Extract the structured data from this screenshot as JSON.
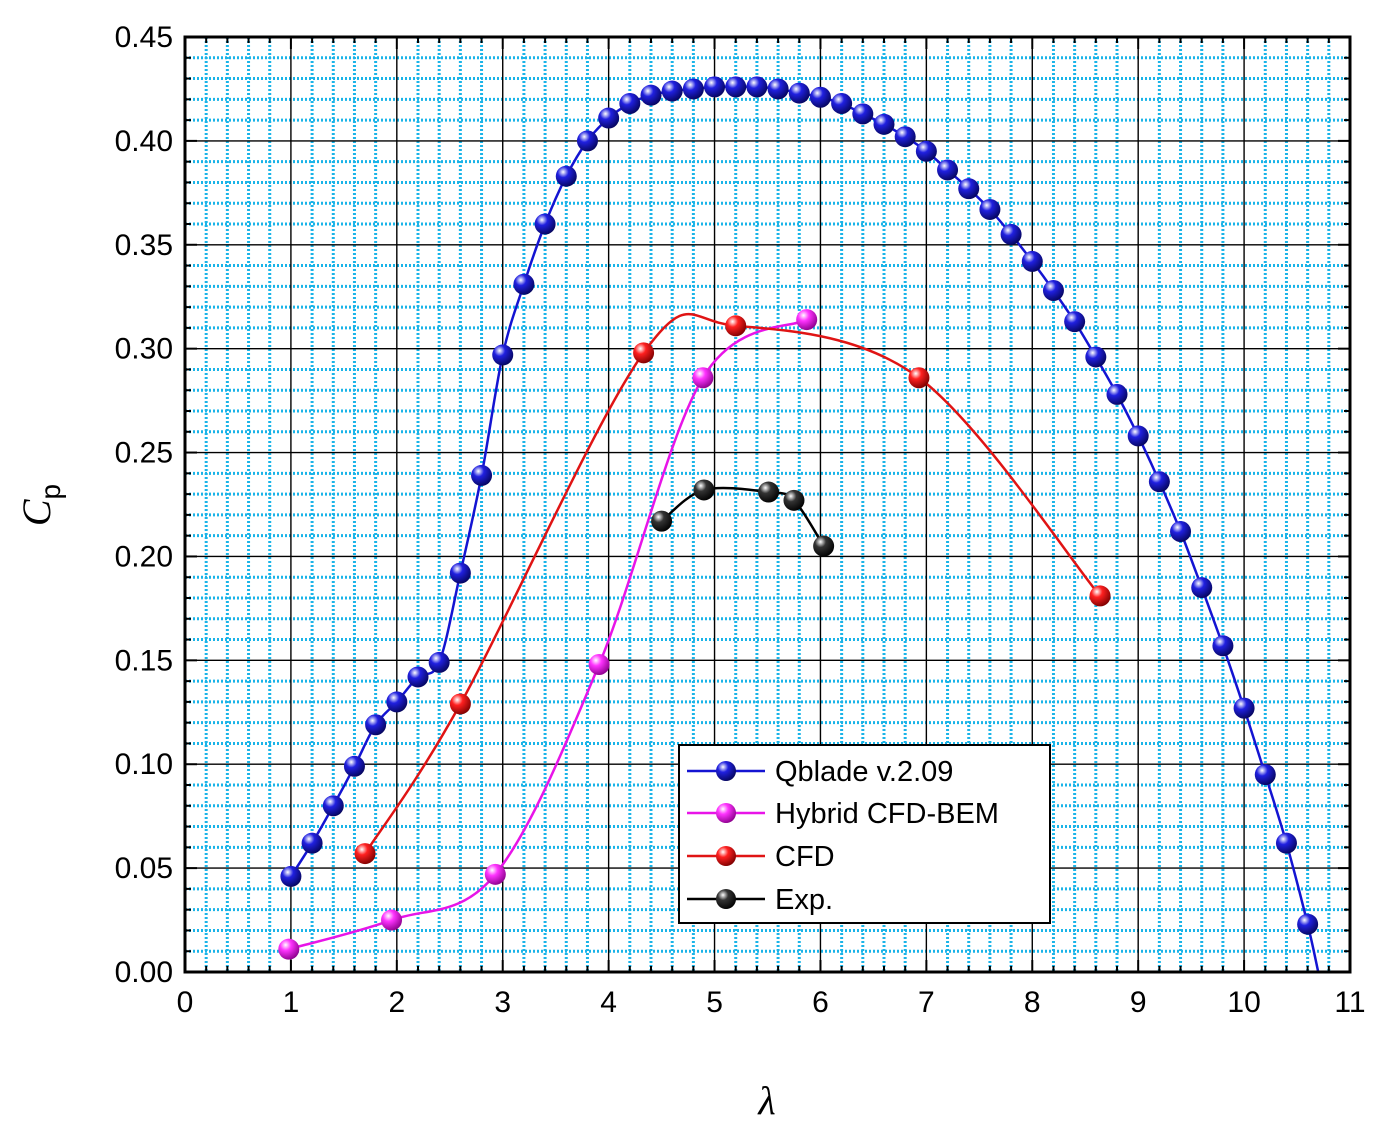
{
  "chart_data": {
    "type": "line",
    "xlabel": "λ",
    "ylabel_main": "C",
    "ylabel_sub": "p",
    "xlim": [
      0,
      11
    ],
    "ylim": [
      0,
      0.45
    ],
    "x_major_step": 1,
    "x_minor_step": 0.2,
    "y_major_step": 0.05,
    "y_minor_step": 0.01,
    "x_ticks": [
      "0",
      "1",
      "2",
      "3",
      "4",
      "5",
      "6",
      "7",
      "8",
      "9",
      "10",
      "11"
    ],
    "y_ticks": [
      "0.00",
      "0.05",
      "0.10",
      "0.15",
      "0.20",
      "0.25",
      "0.30",
      "0.35",
      "0.40",
      "0.45"
    ],
    "grid": true,
    "legend_position": "lower-center",
    "series": [
      {
        "name": "Qblade v.2.09",
        "color": "#1414d2",
        "marker_color": "#2020e0",
        "x": [
          1.0,
          1.2,
          1.4,
          1.6,
          1.8,
          2.0,
          2.2,
          2.4,
          2.6,
          2.8,
          3.0,
          3.2,
          3.4,
          3.6,
          3.8,
          4.0,
          4.2,
          4.4,
          4.6,
          4.8,
          5.0,
          5.2,
          5.4,
          5.6,
          5.8,
          6.0,
          6.2,
          6.4,
          6.6,
          6.8,
          7.0,
          7.2,
          7.4,
          7.6,
          7.8,
          8.0,
          8.2,
          8.4,
          8.6,
          8.8,
          9.0,
          9.2,
          9.4,
          9.6,
          9.8,
          10.0,
          10.2,
          10.4,
          10.6
        ],
        "y": [
          0.046,
          0.062,
          0.08,
          0.099,
          0.119,
          0.13,
          0.142,
          0.149,
          0.192,
          0.239,
          0.297,
          0.331,
          0.36,
          0.383,
          0.4,
          0.411,
          0.418,
          0.422,
          0.424,
          0.425,
          0.426,
          0.426,
          0.426,
          0.425,
          0.423,
          0.421,
          0.418,
          0.413,
          0.408,
          0.402,
          0.395,
          0.386,
          0.377,
          0.367,
          0.355,
          0.342,
          0.328,
          0.313,
          0.296,
          0.278,
          0.258,
          0.236,
          0.212,
          0.185,
          0.157,
          0.127,
          0.095,
          0.062,
          0.023
        ],
        "curve_end": [
          10.7,
          0.0
        ]
      },
      {
        "name": "Hybrid CFD-BEM",
        "color": "#e814e8",
        "marker_color": "#ff33ff",
        "x": [
          0.98,
          1.95,
          2.93,
          3.91,
          4.89,
          5.87
        ],
        "y": [
          0.011,
          0.025,
          0.047,
          0.148,
          0.286,
          0.314
        ]
      },
      {
        "name": "CFD",
        "color": "#e01414",
        "marker_color": "#ff2020",
        "x": [
          1.7,
          2.6,
          4.33,
          5.2,
          6.93,
          8.64
        ],
        "y": [
          0.057,
          0.129,
          0.298,
          0.311,
          0.286,
          0.181
        ]
      },
      {
        "name": "Exp.",
        "color": "#000000",
        "marker_color": "#1a1a1a",
        "x": [
          4.5,
          4.9,
          5.51,
          5.75,
          6.03
        ],
        "y": [
          0.217,
          0.232,
          0.231,
          0.227,
          0.205
        ]
      }
    ]
  }
}
